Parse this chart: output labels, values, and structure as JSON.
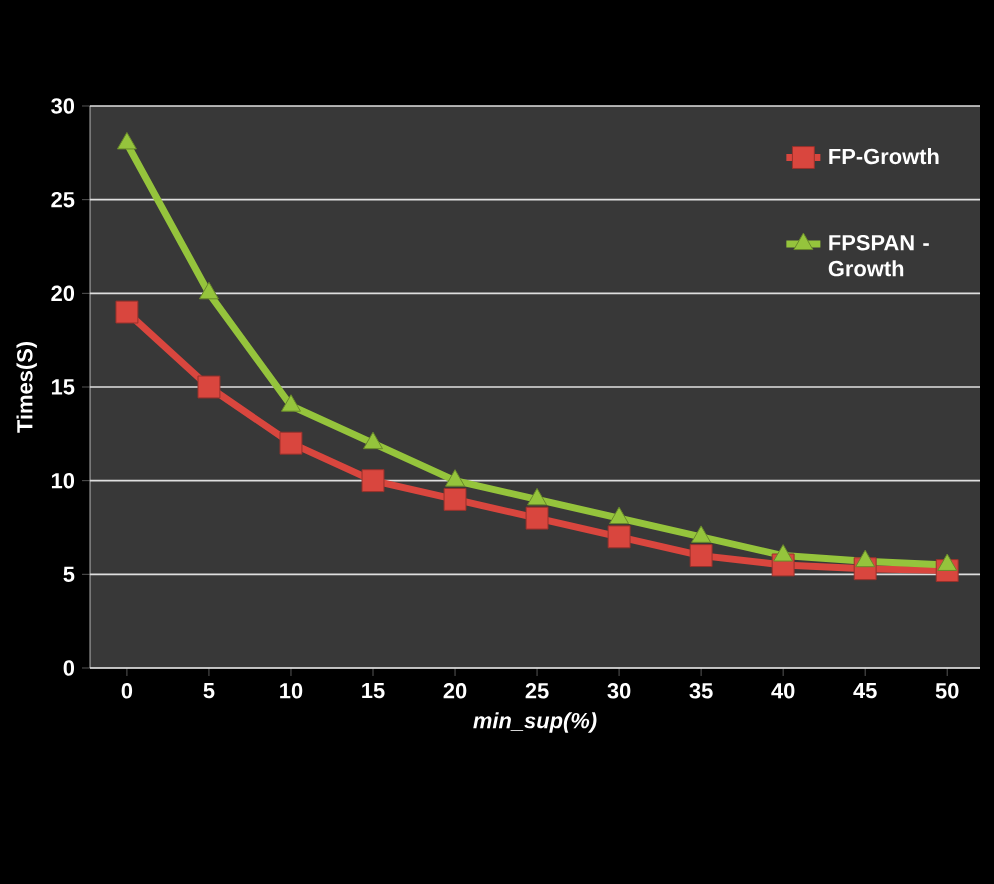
{
  "chart_data": {
    "type": "line",
    "xlabel": "min_sup(%)",
    "ylabel": "Times(S)",
    "categories": [
      "0",
      "5",
      "10",
      "15",
      "20",
      "25",
      "30",
      "35",
      "40",
      "45",
      "50"
    ],
    "series": [
      {
        "name": "FP-Growth",
        "color": "#d9463e",
        "marker": "square",
        "values": [
          19,
          15,
          12,
          10,
          9,
          8,
          7,
          6,
          5.5,
          5.3,
          5.2
        ]
      },
      {
        "name": "FPSPAN - Growth",
        "color": "#95c43c",
        "marker": "triangle",
        "values": [
          28,
          20,
          14,
          12,
          10,
          9,
          8,
          7,
          6,
          5.7,
          5.5
        ]
      }
    ],
    "ylim": [
      0,
      30
    ],
    "yticks": [
      0,
      5,
      10,
      15,
      20,
      25,
      30
    ],
    "grid": "y",
    "legend": "top right"
  }
}
